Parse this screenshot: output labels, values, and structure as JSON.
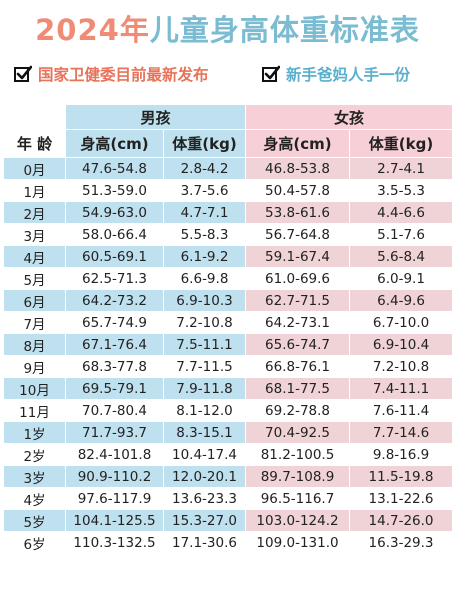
{
  "title": {
    "year": "2024年",
    "rest": "儿童身高体重标准表"
  },
  "subtitle_left": "国家卫健委目前最新发布",
  "subtitle_right": "新手爸妈人手一份",
  "table": {
    "boys_header": "男孩",
    "girls_header": "女孩",
    "age_header": "年 龄",
    "height_header": "身高(cm)",
    "weight_header": "体重(kg)",
    "rows": [
      {
        "age": "0月",
        "boy_height": "47.6-54.8",
        "boy_weight": "2.8-4.2",
        "girl_height": "46.8-53.8",
        "girl_weight": "2.7-4.1"
      },
      {
        "age": "1月",
        "boy_height": "51.3-59.0",
        "boy_weight": "3.7-5.6",
        "girl_height": "50.4-57.8",
        "girl_weight": "3.5-5.3"
      },
      {
        "age": "2月",
        "boy_height": "54.9-63.0",
        "boy_weight": "4.7-7.1",
        "girl_height": "53.8-61.6",
        "girl_weight": "4.4-6.6"
      },
      {
        "age": "3月",
        "boy_height": "58.0-66.4",
        "boy_weight": "5.5-8.3",
        "girl_height": "56.7-64.8",
        "girl_weight": "5.1-7.6"
      },
      {
        "age": "4月",
        "boy_height": "60.5-69.1",
        "boy_weight": "6.1-9.2",
        "girl_height": "59.1-67.4",
        "girl_weight": "5.6-8.4"
      },
      {
        "age": "5月",
        "boy_height": "62.5-71.3",
        "boy_weight": "6.6-9.8",
        "girl_height": "61.0-69.6",
        "girl_weight": "6.0-9.1"
      },
      {
        "age": "6月",
        "boy_height": "64.2-73.2",
        "boy_weight": "6.9-10.3",
        "girl_height": "62.7-71.5",
        "girl_weight": "6.4-9.6"
      },
      {
        "age": "7月",
        "boy_height": "65.7-74.9",
        "boy_weight": "7.2-10.8",
        "girl_height": "64.2-73.1",
        "girl_weight": "6.7-10.0"
      },
      {
        "age": "8月",
        "boy_height": "67.1-76.4",
        "boy_weight": "7.5-11.1",
        "girl_height": "65.6-74.7",
        "girl_weight": "6.9-10.4"
      },
      {
        "age": "9月",
        "boy_height": "68.3-77.8",
        "boy_weight": "7.7-11.5",
        "girl_height": "66.8-76.1",
        "girl_weight": "7.2-10.8"
      },
      {
        "age": "10月",
        "boy_height": "69.5-79.1",
        "boy_weight": "7.9-11.8",
        "girl_height": "68.1-77.5",
        "girl_weight": "7.4-11.1"
      },
      {
        "age": "11月",
        "boy_height": "70.7-80.4",
        "boy_weight": "8.1-12.0",
        "girl_height": "69.2-78.8",
        "girl_weight": "7.6-11.4"
      },
      {
        "age": "1岁",
        "boy_height": "71.7-93.7",
        "boy_weight": "8.3-15.1",
        "girl_height": "70.4-92.5",
        "girl_weight": "7.7-14.6"
      },
      {
        "age": "2岁",
        "boy_height": "82.4-101.8",
        "boy_weight": "10.4-17.4",
        "girl_height": "81.2-100.5",
        "girl_weight": "9.8-16.9"
      },
      {
        "age": "3岁",
        "boy_height": "90.9-110.2",
        "boy_weight": "12.0-20.1",
        "girl_height": "89.7-108.9",
        "girl_weight": "11.5-19.8"
      },
      {
        "age": "4岁",
        "boy_height": "97.6-117.9",
        "boy_weight": "13.6-23.3",
        "girl_height": "96.5-116.7",
        "girl_weight": "13.1-22.6"
      },
      {
        "age": "5岁",
        "boy_height": "104.1-125.5",
        "boy_weight": "15.3-27.0",
        "girl_height": "103.0-124.2",
        "girl_weight": "14.7-26.0"
      },
      {
        "age": "6岁",
        "boy_height": "110.3-132.5",
        "boy_weight": "17.1-30.6",
        "girl_height": "109.0-131.0",
        "girl_weight": "16.3-29.3"
      }
    ]
  },
  "colors": {
    "title_year": "#f08c76",
    "title_rest": "#7bbcd2",
    "boy_shade": "#bfe0ee",
    "girl_shade": "#f0d3d6"
  }
}
